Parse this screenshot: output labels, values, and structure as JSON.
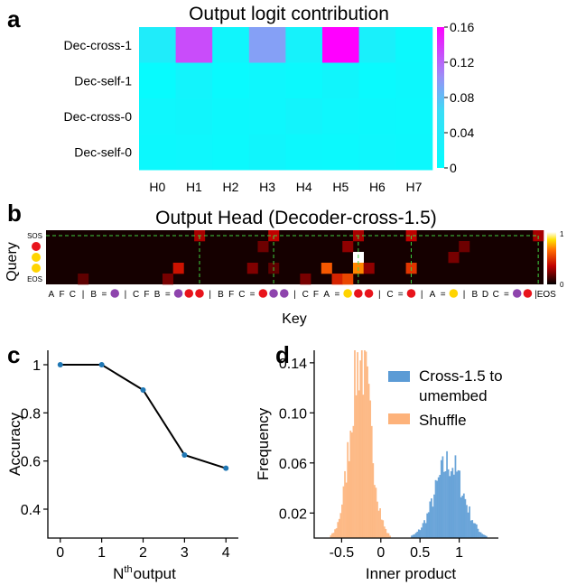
{
  "figure": {
    "panel_labels": [
      "a",
      "b",
      "c",
      "d"
    ]
  },
  "chart_data": [
    {
      "panel": "a",
      "type": "heatmap",
      "title": "Output logit contribution",
      "rows": [
        "Dec-cross-1",
        "Dec-self-1",
        "Dec-cross-0",
        "Dec-self-0"
      ],
      "columns": [
        "H0",
        "H1",
        "H2",
        "H3",
        "H4",
        "H5",
        "H6",
        "H7"
      ],
      "values": [
        [
          0.035,
          0.13,
          0.018,
          0.095,
          0.025,
          0.16,
          0.028,
          0.012
        ],
        [
          0.008,
          0.02,
          0.01,
          0.016,
          0.012,
          0.018,
          0.01,
          0.014
        ],
        [
          0.016,
          0.018,
          0.014,
          0.016,
          0.02,
          0.016,
          0.014,
          0.012
        ],
        [
          0.014,
          0.016,
          0.012,
          0.018,
          0.014,
          0.012,
          0.016,
          0.014
        ]
      ],
      "colorbar": {
        "min": 0,
        "max": 0.16,
        "ticks": [
          "0",
          "0.04",
          "0.08",
          "0.12",
          "0.16"
        ],
        "low_color": "#00ffff",
        "high_color": "#ff00ff"
      }
    },
    {
      "panel": "b",
      "type": "heatmap",
      "title": "Output Head (Decoder-cross-1.5)",
      "xlabel": "Key",
      "ylabel": "Query",
      "query_labels": [
        {
          "text": "SOS",
          "dot": ""
        },
        {
          "text": "",
          "dot": "red"
        },
        {
          "text": "",
          "dot": "yellow"
        },
        {
          "text": "",
          "dot": "yellow"
        },
        {
          "text": "EOS",
          "dot": ""
        }
      ],
      "key_tokens": [
        {
          "t": "A"
        },
        {
          "t": "F"
        },
        {
          "t": "C"
        },
        {
          "t": "|"
        },
        {
          "t": "B"
        },
        {
          "t": "="
        },
        {
          "dot": "purple"
        },
        {
          "t": "|"
        },
        {
          "t": "C"
        },
        {
          "t": "F"
        },
        {
          "t": "B"
        },
        {
          "t": "="
        },
        {
          "dot": "purple"
        },
        {
          "dot": "red"
        },
        {
          "dot": "red"
        },
        {
          "t": "|"
        },
        {
          "t": "B"
        },
        {
          "t": "F"
        },
        {
          "t": "C"
        },
        {
          "t": "="
        },
        {
          "dot": "red"
        },
        {
          "dot": "purple"
        },
        {
          "dot": "purple"
        },
        {
          "t": "|"
        },
        {
          "t": "C"
        },
        {
          "t": "F"
        },
        {
          "t": "A"
        },
        {
          "t": "="
        },
        {
          "dot": "yellow"
        },
        {
          "dot": "red"
        },
        {
          "dot": "red"
        },
        {
          "t": "|"
        },
        {
          "t": "C"
        },
        {
          "t": "="
        },
        {
          "dot": "red"
        },
        {
          "t": "|"
        },
        {
          "t": "A"
        },
        {
          "t": "="
        },
        {
          "dot": "yellow"
        },
        {
          "t": "|"
        },
        {
          "t": "B"
        },
        {
          "t": "D"
        },
        {
          "t": "C"
        },
        {
          "t": "="
        },
        {
          "dot": "purple"
        },
        {
          "dot": "red"
        },
        {
          "t": "|EOS"
        }
      ],
      "highlights": [
        {
          "row": 2,
          "col": 29,
          "value": 1.0
        },
        {
          "row": 3,
          "col": 29,
          "value": 0.7
        },
        {
          "row": 0,
          "col": 14,
          "value": 0.3
        },
        {
          "row": 0,
          "col": 21,
          "value": 0.35
        },
        {
          "row": 0,
          "col": 29,
          "value": 0.3
        },
        {
          "row": 0,
          "col": 34,
          "value": 0.35
        },
        {
          "row": 0,
          "col": 46,
          "value": 0.3
        },
        {
          "row": 1,
          "col": 28,
          "value": 0.25
        },
        {
          "row": 1,
          "col": 20,
          "value": 0.18
        },
        {
          "row": 1,
          "col": 39,
          "value": 0.18
        },
        {
          "row": 2,
          "col": 38,
          "value": 0.2
        },
        {
          "row": 3,
          "col": 12,
          "value": 0.4
        },
        {
          "row": 3,
          "col": 19,
          "value": 0.22
        },
        {
          "row": 3,
          "col": 21,
          "value": 0.15
        },
        {
          "row": 3,
          "col": 26,
          "value": 0.6
        },
        {
          "row": 3,
          "col": 30,
          "value": 0.25
        },
        {
          "row": 3,
          "col": 34,
          "value": 0.5
        },
        {
          "row": 4,
          "col": 11,
          "value": 0.2
        },
        {
          "row": 4,
          "col": 24,
          "value": 0.2
        },
        {
          "row": 4,
          "col": 27,
          "value": 0.45
        },
        {
          "row": 4,
          "col": 28,
          "value": 0.55
        },
        {
          "row": 4,
          "col": 3,
          "value": 0.15
        }
      ],
      "guide_columns": [
        14,
        21,
        29,
        34,
        46
      ],
      "colorbar": {
        "min": 0,
        "max": 1,
        "ticks": [
          "0",
          "1"
        ]
      }
    },
    {
      "panel": "c",
      "type": "line",
      "xlabel": "N",
      "xlabel_sup": "th",
      "xlabel_rest": "output",
      "ylabel": "Accuracy",
      "x": [
        0,
        1,
        2,
        3,
        4
      ],
      "y": [
        1.0,
        1.0,
        0.895,
        0.625,
        0.57
      ],
      "xlim": [
        -0.3,
        4.3
      ],
      "ylim": [
        0.28,
        1.06
      ],
      "xticks": [
        "0",
        "1",
        "2",
        "3",
        "4"
      ],
      "yticks": [
        "0.4",
        "0.6",
        "0.8",
        "1"
      ],
      "line_color": "#000000",
      "marker_color": "#1f77b4"
    },
    {
      "panel": "d",
      "type": "bar",
      "subtype": "histogram",
      "xlabel": "Inner product",
      "ylabel": "Frequency",
      "xlim": [
        -0.85,
        1.5
      ],
      "ylim": [
        0,
        0.15
      ],
      "xticks": [
        "-0.5",
        "0",
        "0.5",
        "1"
      ],
      "yticks": [
        "0.02",
        "0.06",
        "0.10",
        "0.14"
      ],
      "series": [
        {
          "name": "Cross-1.5 to umembed",
          "legend_line1": "Cross-1.5 to",
          "legend_line2": "umembed",
          "color": "#5b9bd5",
          "center": 0.87,
          "sd": 0.18,
          "peak": 0.06
        },
        {
          "name": "Shuffle",
          "color": "#fdb27a",
          "center": -0.26,
          "sd": 0.13,
          "peak": 0.145
        }
      ]
    }
  ]
}
